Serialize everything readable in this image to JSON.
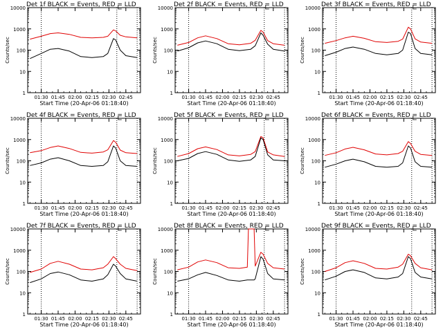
{
  "colors": {
    "events": "#000000",
    "lld": "#e00000",
    "axis": "#000000"
  },
  "legend_suffix": "BLACK = Events, RED = LLD",
  "xlabel": "Start Time (20-Apr-06 01:18:40)",
  "ylabel": "Counts/sec",
  "chart_data": [
    {
      "type": "line",
      "title": "Det 1f BLACK = Events, RED = LLD",
      "xlabel": "Start Time (20-Apr-06 01:18:40)",
      "ylabel": "Counts/sec",
      "yscale": "log",
      "ylim": [
        1,
        10000
      ],
      "xlim": [
        "01:18",
        "02:58"
      ],
      "xticks": [
        "01:30",
        "01:45",
        "02:00",
        "02:15",
        "02:30",
        "02:45"
      ],
      "yticks": [
        "1",
        "10",
        "100",
        "1000",
        "10000"
      ],
      "vlines": [
        "01:30",
        "02:37",
        "02:55"
      ],
      "x": [
        "01:20",
        "01:30",
        "01:38",
        "01:45",
        "01:55",
        "02:05",
        "02:15",
        "02:25",
        "02:29",
        "02:34",
        "02:36",
        "02:40",
        "02:45",
        "02:55"
      ],
      "series": [
        {
          "name": "Events",
          "values": [
            40,
            70,
            110,
            120,
            90,
            50,
            45,
            50,
            70,
            350,
            300,
            100,
            55,
            45
          ]
        },
        {
          "name": "LLD",
          "values": [
            330,
            450,
            600,
            650,
            550,
            400,
            380,
            400,
            450,
            900,
            800,
            500,
            420,
            380
          ]
        }
      ]
    },
    {
      "type": "line",
      "title": "Det 2f BLACK = Events, RED = LLD",
      "xlabel": "Start Time (20-Apr-06 01:18:40)",
      "ylabel": "Counts/sec",
      "yscale": "log",
      "ylim": [
        1,
        10000
      ],
      "xlim": [
        "01:18",
        "02:58"
      ],
      "xticks": [
        "01:30",
        "01:45",
        "02:00",
        "02:15",
        "02:30",
        "02:45"
      ],
      "yticks": [
        "1",
        "10",
        "100",
        "1000",
        "10000"
      ],
      "vlines": [
        "01:30",
        "02:37",
        "02:55"
      ],
      "x": [
        "01:20",
        "01:30",
        "01:38",
        "01:45",
        "01:55",
        "02:05",
        "02:15",
        "02:25",
        "02:29",
        "02:34",
        "02:36",
        "02:40",
        "02:45",
        "02:55"
      ],
      "series": [
        {
          "name": "Events",
          "values": [
            90,
            130,
            220,
            270,
            200,
            110,
            95,
            110,
            160,
            650,
            500,
            190,
            110,
            90
          ]
        },
        {
          "name": "LLD",
          "values": [
            170,
            230,
            380,
            470,
            350,
            200,
            180,
            210,
            290,
            850,
            700,
            280,
            200,
            170
          ]
        }
      ]
    },
    {
      "type": "line",
      "title": "Det 3f BLACK = Events, RED = LLD",
      "xlabel": "Start Time (20-Apr-06 01:18:40)",
      "ylabel": "Counts/sec",
      "yscale": "log",
      "ylim": [
        1,
        10000
      ],
      "xlim": [
        "01:18",
        "02:58"
      ],
      "xticks": [
        "01:30",
        "01:45",
        "02:00",
        "02:15",
        "02:30",
        "02:45"
      ],
      "yticks": [
        "1",
        "10",
        "100",
        "1000",
        "10000"
      ],
      "vlines": [
        "01:30",
        "02:37",
        "02:55"
      ],
      "x": [
        "01:20",
        "01:30",
        "01:38",
        "01:45",
        "01:55",
        "02:05",
        "02:15",
        "02:25",
        "02:29",
        "02:34",
        "02:36",
        "02:40",
        "02:45",
        "02:55"
      ],
      "series": [
        {
          "name": "Events",
          "values": [
            55,
            80,
            120,
            140,
            110,
            70,
            60,
            70,
            100,
            700,
            600,
            120,
            70,
            60
          ]
        },
        {
          "name": "LLD",
          "values": [
            210,
            280,
            380,
            450,
            360,
            250,
            230,
            260,
            330,
            1200,
            1000,
            340,
            240,
            210
          ]
        }
      ]
    },
    {
      "type": "line",
      "title": "Det 4f BLACK = Events, RED = LLD",
      "xlabel": "Start Time (20-Apr-06 01:18:40)",
      "ylabel": "Counts/sec",
      "yscale": "log",
      "ylim": [
        1,
        10000
      ],
      "xlim": [
        "01:18",
        "02:58"
      ],
      "xticks": [
        "01:30",
        "01:45",
        "02:00",
        "02:15",
        "02:30",
        "02:45"
      ],
      "yticks": [
        "1",
        "10",
        "100",
        "1000",
        "10000"
      ],
      "vlines": [
        "01:30",
        "02:37",
        "02:55"
      ],
      "x": [
        "01:20",
        "01:30",
        "01:38",
        "01:45",
        "01:55",
        "02:05",
        "02:15",
        "02:25",
        "02:29",
        "02:34",
        "02:36",
        "02:40",
        "02:45",
        "02:55"
      ],
      "series": [
        {
          "name": "Events",
          "values": [
            60,
            80,
            120,
            140,
            100,
            60,
            55,
            60,
            90,
            500,
            400,
            100,
            60,
            55
          ]
        },
        {
          "name": "LLD",
          "values": [
            240,
            300,
            420,
            500,
            380,
            250,
            230,
            260,
            330,
            900,
            750,
            320,
            240,
            220
          ]
        }
      ]
    },
    {
      "type": "line",
      "title": "Det 5f BLACK = Events, RED = LLD",
      "xlabel": "Start Time (20-Apr-06 01:18:40)",
      "ylabel": "Counts/sec",
      "yscale": "log",
      "ylim": [
        1,
        10000
      ],
      "xlim": [
        "01:18",
        "02:58"
      ],
      "xticks": [
        "01:30",
        "01:45",
        "02:00",
        "02:15",
        "02:30",
        "02:45"
      ],
      "yticks": [
        "1",
        "10",
        "100",
        "1000",
        "10000"
      ],
      "vlines": [
        "01:30",
        "02:37",
        "02:55"
      ],
      "x": [
        "01:20",
        "01:30",
        "01:38",
        "01:45",
        "01:55",
        "02:05",
        "02:15",
        "02:25",
        "02:29",
        "02:34",
        "02:36",
        "02:40",
        "02:45",
        "02:55"
      ],
      "series": [
        {
          "name": "Events",
          "values": [
            100,
            130,
            220,
            270,
            200,
            110,
            95,
            110,
            160,
            1200,
            1000,
            190,
            110,
            100
          ]
        },
        {
          "name": "LLD",
          "values": [
            160,
            220,
            370,
            450,
            340,
            190,
            170,
            200,
            270,
            1400,
            1200,
            260,
            190,
            160
          ]
        }
      ]
    },
    {
      "type": "line",
      "title": "Det 6f BLACK = Events, RED = LLD",
      "xlabel": "Start Time (20-Apr-06 01:18:40)",
      "ylabel": "Counts/sec",
      "yscale": "log",
      "ylim": [
        1,
        10000
      ],
      "xlim": [
        "01:18",
        "02:58"
      ],
      "xticks": [
        "01:30",
        "01:45",
        "02:00",
        "02:15",
        "02:30",
        "02:45"
      ],
      "yticks": [
        "1",
        "10",
        "100",
        "1000",
        "10000"
      ],
      "vlines": [
        "01:30",
        "02:37",
        "02:55"
      ],
      "x": [
        "01:20",
        "01:30",
        "01:38",
        "01:45",
        "01:55",
        "02:05",
        "02:15",
        "02:25",
        "02:29",
        "02:34",
        "02:36",
        "02:40",
        "02:45",
        "02:55"
      ],
      "series": [
        {
          "name": "Events",
          "values": [
            50,
            70,
            100,
            120,
            90,
            55,
            50,
            55,
            80,
            500,
            400,
            90,
            55,
            50
          ]
        },
        {
          "name": "LLD",
          "values": [
            180,
            240,
            360,
            430,
            330,
            210,
            190,
            220,
            280,
            800,
            650,
            280,
            200,
            180
          ]
        }
      ]
    },
    {
      "type": "line",
      "title": "Det 7f BLACK = Events, RED = LLD",
      "xlabel": "Start Time (20-Apr-06 01:18:40)",
      "ylabel": "Counts/sec",
      "yscale": "log",
      "ylim": [
        1,
        10000
      ],
      "xlim": [
        "01:18",
        "02:58"
      ],
      "xticks": [
        "01:30",
        "01:45",
        "02:00",
        "02:15",
        "02:30",
        "02:45"
      ],
      "yticks": [
        "1",
        "10",
        "100",
        "1000",
        "10000"
      ],
      "vlines": [
        "01:30",
        "02:37",
        "02:55"
      ],
      "x": [
        "01:20",
        "01:30",
        "01:38",
        "01:45",
        "01:55",
        "02:05",
        "02:15",
        "02:25",
        "02:29",
        "02:34",
        "02:36",
        "02:40",
        "02:45",
        "02:55"
      ],
      "series": [
        {
          "name": "Events",
          "values": [
            30,
            45,
            80,
            95,
            70,
            40,
            35,
            45,
            70,
            220,
            180,
            80,
            45,
            35
          ]
        },
        {
          "name": "LLD",
          "values": [
            90,
            130,
            240,
            300,
            220,
            130,
            120,
            150,
            220,
            500,
            400,
            220,
            140,
            110
          ]
        }
      ]
    },
    {
      "type": "line",
      "title": "Det 8f BLACK = Events, RED = LLD",
      "xlabel": "Start Time (20-Apr-06 01:18:40)",
      "ylabel": "Counts/sec",
      "yscale": "log",
      "ylim": [
        1,
        10000
      ],
      "xlim": [
        "01:18",
        "02:58"
      ],
      "xticks": [
        "01:30",
        "01:45",
        "02:00",
        "02:15",
        "02:30",
        "02:45"
      ],
      "yticks": [
        "1",
        "10",
        "100",
        "1000",
        "10000"
      ],
      "vlines": [
        "01:30",
        "02:37",
        "02:55"
      ],
      "x": [
        "01:20",
        "01:30",
        "01:38",
        "01:45",
        "01:55",
        "02:05",
        "02:15",
        "02:22",
        "02:23",
        "02:28",
        "02:29",
        "02:34",
        "02:36",
        "02:40",
        "02:45",
        "02:55"
      ],
      "series": [
        {
          "name": "Events",
          "values": [
            35,
            45,
            70,
            90,
            65,
            40,
            35,
            40,
            40,
            40,
            45,
            500,
            380,
            80,
            45,
            40
          ]
        },
        {
          "name": "LLD",
          "values": [
            120,
            160,
            280,
            350,
            260,
            150,
            140,
            160,
            10000,
            10000,
            180,
            800,
            650,
            240,
            150,
            130
          ]
        }
      ]
    },
    {
      "type": "line",
      "title": "Det 9f BLACK = Events, RED = LLD",
      "xlabel": "Start Time (20-Apr-06 01:18:40)",
      "ylabel": "Counts/sec",
      "yscale": "log",
      "ylim": [
        1,
        10000
      ],
      "xlim": [
        "01:18",
        "02:58"
      ],
      "xticks": [
        "01:30",
        "01:45",
        "02:00",
        "02:15",
        "02:30",
        "02:45"
      ],
      "yticks": [
        "1",
        "10",
        "100",
        "1000",
        "10000"
      ],
      "vlines": [
        "01:30",
        "02:37",
        "02:55"
      ],
      "x": [
        "01:20",
        "01:30",
        "01:38",
        "01:45",
        "01:55",
        "02:05",
        "02:15",
        "02:25",
        "02:29",
        "02:34",
        "02:36",
        "02:40",
        "02:45",
        "02:55"
      ],
      "series": [
        {
          "name": "Events",
          "values": [
            40,
            60,
            100,
            120,
            90,
            50,
            45,
            55,
            80,
            500,
            400,
            90,
            55,
            45
          ]
        },
        {
          "name": "LLD",
          "values": [
            100,
            150,
            260,
            320,
            240,
            140,
            130,
            160,
            220,
            650,
            550,
            240,
            150,
            120
          ]
        }
      ]
    }
  ]
}
